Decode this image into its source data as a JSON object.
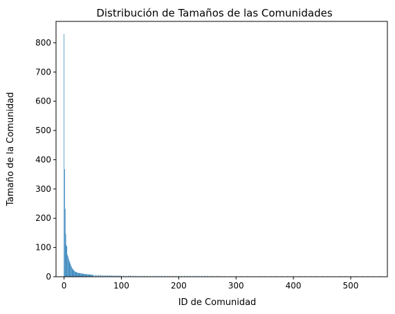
{
  "chart_data": {
    "type": "bar",
    "title": "Distribución de Tamaños de las Comunidades",
    "xlabel": "ID de Comunidad",
    "ylabel": "Tamaño de la Comunidad",
    "xlim": [
      -14,
      564
    ],
    "ylim": [
      0,
      873
    ],
    "xticks": [
      0,
      100,
      200,
      300,
      400,
      500
    ],
    "yticks": [
      0,
      100,
      200,
      300,
      400,
      500,
      600,
      700,
      800
    ],
    "bar_color": "#1f77b4",
    "x": [
      0,
      1,
      2,
      3,
      4,
      5,
      6,
      7,
      8,
      9,
      10,
      11,
      12,
      13,
      14,
      15,
      16,
      17,
      18,
      19,
      20,
      21,
      22,
      23,
      24,
      25,
      26,
      27,
      28,
      29,
      30,
      31,
      32,
      33,
      34,
      35,
      36,
      37,
      38,
      39,
      40,
      41,
      42,
      43,
      44,
      45,
      46,
      47,
      48,
      49,
      50,
      52,
      54,
      56,
      58,
      60,
      62,
      64,
      66,
      68,
      70,
      72,
      74,
      76,
      78,
      80,
      82,
      84,
      86,
      88,
      90,
      92,
      94,
      96,
      98,
      100,
      104,
      108,
      112,
      116,
      120,
      124,
      128,
      132,
      136,
      140,
      145,
      150,
      155,
      160,
      165,
      170,
      175,
      180,
      185,
      190,
      195,
      200,
      205,
      210,
      215,
      220,
      225,
      230,
      235,
      240,
      245,
      250,
      255,
      260,
      265,
      270,
      275,
      280,
      290,
      300,
      310,
      320,
      330,
      340,
      350,
      360,
      370,
      380,
      390,
      400,
      410,
      420,
      430,
      440,
      450,
      460,
      470,
      480,
      490,
      500,
      510,
      520,
      530,
      540,
      550
    ],
    "values": [
      830,
      368,
      232,
      147,
      108,
      104,
      75,
      70,
      62,
      55,
      50,
      45,
      38,
      35,
      30,
      27,
      24,
      22,
      20,
      18,
      17,
      16,
      15,
      14,
      14,
      13,
      13,
      12,
      12,
      12,
      11,
      11,
      11,
      10,
      10,
      10,
      9,
      9,
      9,
      9,
      8,
      8,
      8,
      8,
      8,
      7,
      7,
      7,
      7,
      7,
      7,
      6,
      6,
      6,
      6,
      6,
      6,
      6,
      5,
      5,
      5,
      5,
      5,
      5,
      5,
      5,
      5,
      4,
      4,
      4,
      4,
      4,
      4,
      4,
      4,
      4,
      4,
      4,
      4,
      4,
      4,
      3,
      3,
      3,
      3,
      3,
      3,
      3,
      3,
      3,
      3,
      3,
      3,
      3,
      3,
      3,
      3,
      3,
      3,
      3,
      3,
      3,
      3,
      3,
      3,
      3,
      3,
      3,
      3,
      3,
      3,
      3,
      2,
      2,
      2,
      2,
      2,
      2,
      2,
      2,
      2,
      2,
      2,
      2,
      2,
      2,
      2,
      2,
      2,
      2,
      2,
      2,
      2,
      2,
      2,
      2,
      2,
      2,
      2,
      2,
      2
    ]
  }
}
